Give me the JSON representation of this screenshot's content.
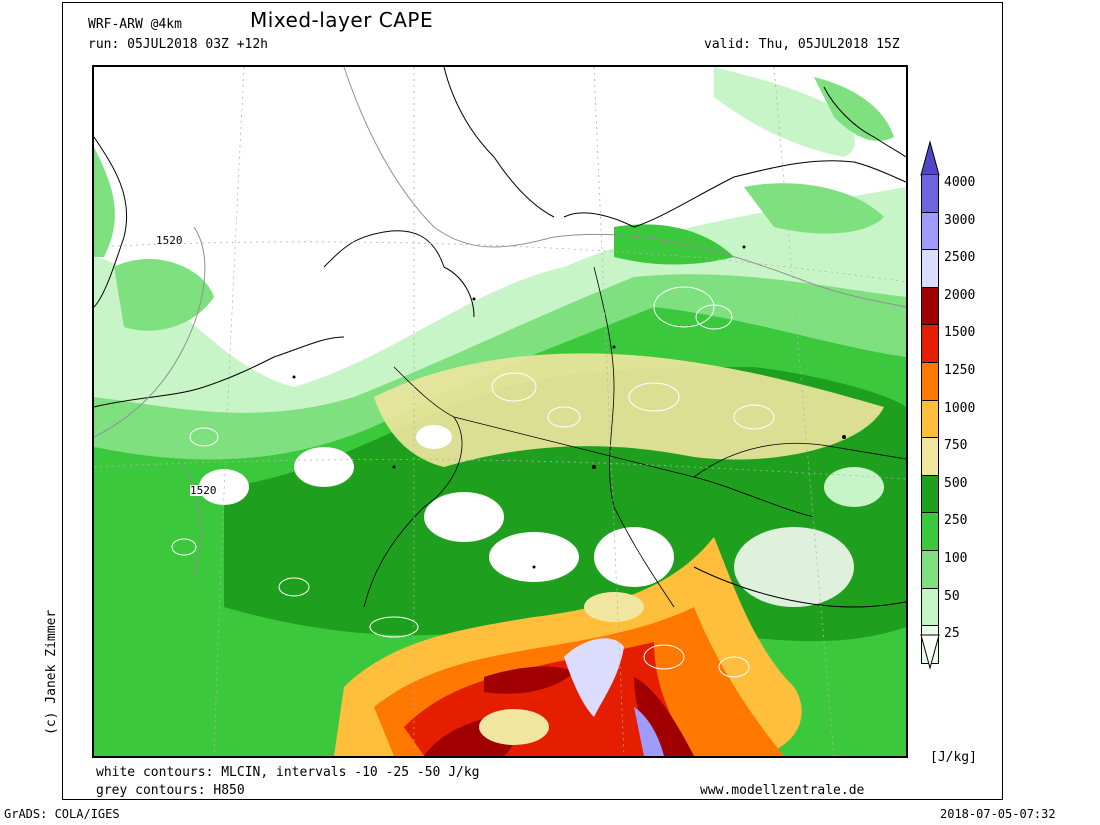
{
  "header": {
    "model": "WRF-ARW @4km",
    "title": "Mixed-layer CAPE",
    "run": "run: 05JUL2018 03Z +12h",
    "valid": "valid: Thu, 05JUL2018 15Z"
  },
  "footer": {
    "line1": "white contours: MLCIN, intervals -10 -25 -50 J/kg",
    "line2": "grey contours: H850",
    "website": "www.modellzentrale.de",
    "grads": "GrADS: COLA/IGES",
    "timestamp": "2018-07-05-07:32"
  },
  "credit": "(c) Janek Zimmer",
  "map": {
    "contour_labels": [
      "1520",
      "1520"
    ]
  },
  "colorbar": {
    "unit": "[J/kg]",
    "levels": [
      {
        "label": "25",
        "color": "#e6ffe6"
      },
      {
        "label": "50",
        "color": "#c8f5c8"
      },
      {
        "label": "100",
        "color": "#7ee07e"
      },
      {
        "label": "250",
        "color": "#3cc83c"
      },
      {
        "label": "500",
        "color": "#1ea01e"
      },
      {
        "label": "750",
        "color": "#f0e6a0"
      },
      {
        "label": "1000",
        "color": "#ffbe3c"
      },
      {
        "label": "1250",
        "color": "#ff7800"
      },
      {
        "label": "1500",
        "color": "#e61e00"
      },
      {
        "label": "2000",
        "color": "#a00000"
      },
      {
        "label": "2500",
        "color": "#dcdcff"
      },
      {
        "label": "3000",
        "color": "#a09bff"
      },
      {
        "label": "4000",
        "color": "#6e64dc"
      }
    ],
    "top_color": "#4f46c8"
  }
}
